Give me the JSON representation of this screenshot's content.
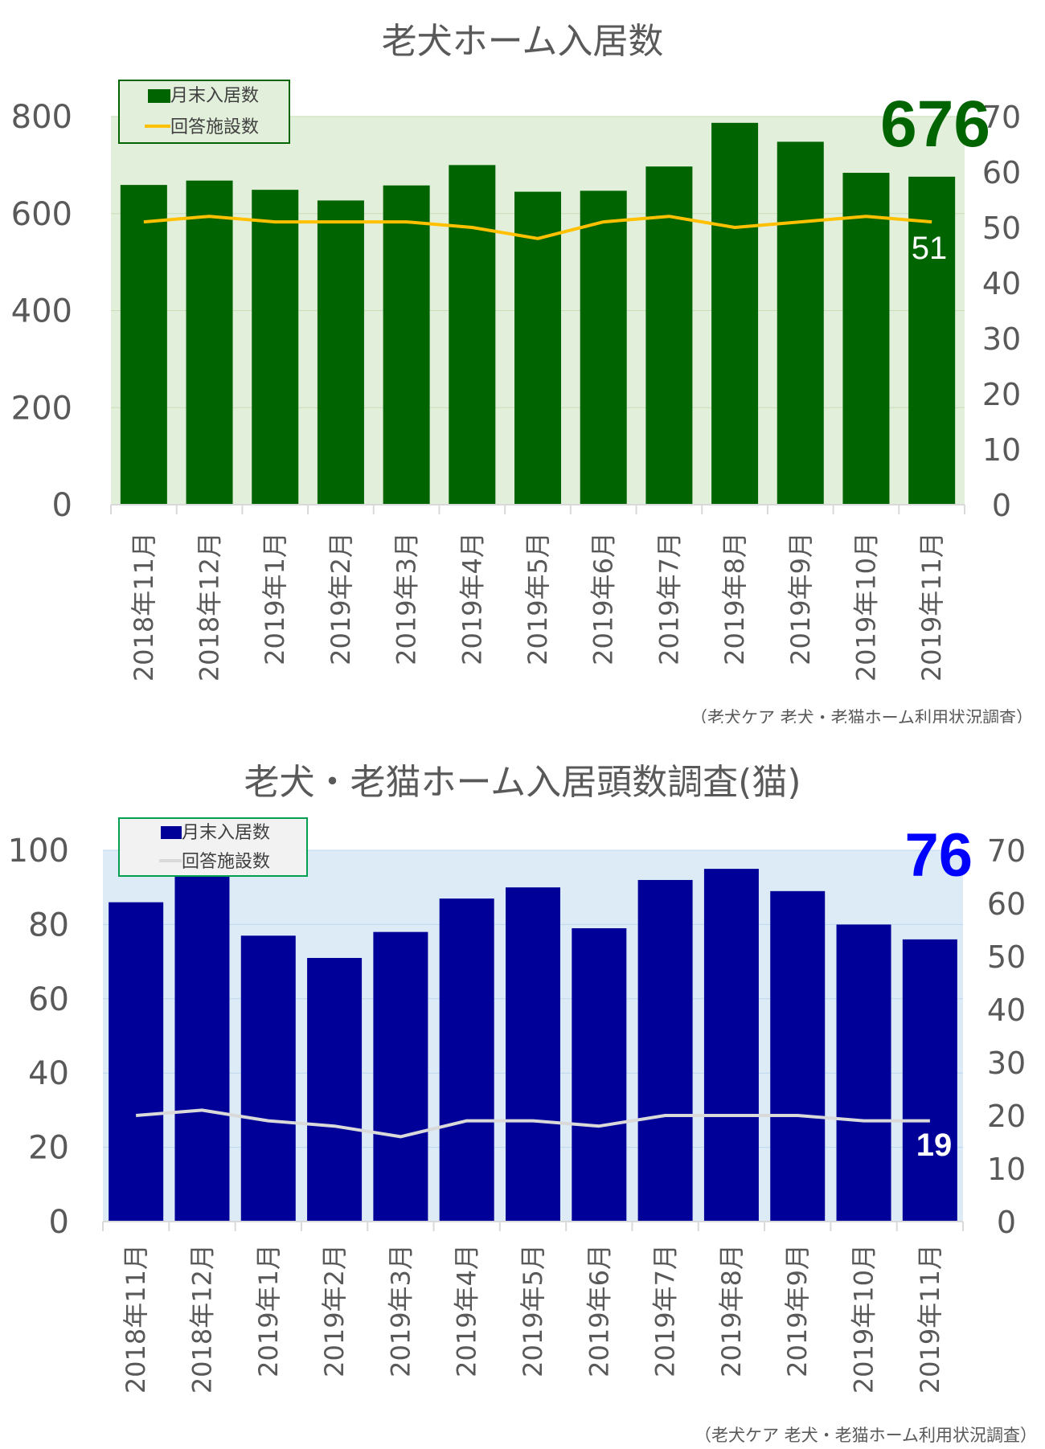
{
  "chart_data": [
    {
      "type": "bar",
      "title": "老犬ホーム入居数",
      "categories": [
        "2018年11月",
        "2018年12月",
        "2019年1月",
        "2019年2月",
        "2019年3月",
        "2019年4月",
        "2019年5月",
        "2019年6月",
        "2019年7月",
        "2019年8月",
        "2019年9月",
        "2019年10月",
        "2019年11月"
      ],
      "series": [
        {
          "name": "月末入居数",
          "type": "bar",
          "axis": "left",
          "color": "#006400",
          "values": [
            659,
            668,
            649,
            627,
            658,
            700,
            645,
            647,
            697,
            787,
            748,
            684,
            676
          ]
        },
        {
          "name": "回答施設数",
          "type": "line",
          "axis": "right",
          "color": "#FFC000",
          "values": [
            51,
            52,
            51,
            51,
            51,
            50,
            48,
            51,
            52,
            50,
            51,
            52,
            51
          ]
        }
      ],
      "ylim": [
        0,
        800
      ],
      "y2lim": [
        0,
        70
      ],
      "yticks": [
        "0",
        "200",
        "400",
        "600",
        "800"
      ],
      "y2ticks": [
        "0",
        "10",
        "20",
        "30",
        "40",
        "50",
        "60",
        "70"
      ],
      "big_label": "676",
      "big_label_color": "#006400",
      "end_label": "51",
      "plot_bg": "#E2EFDA",
      "source": "（老犬ケア 老犬・老猫ホーム利用状況調査）",
      "legend_placement": "top-left"
    },
    {
      "type": "bar",
      "title": "老犬・老猫ホーム入居頭数調査(猫)",
      "categories": [
        "2018年11月",
        "2018年12月",
        "2019年1月",
        "2019年2月",
        "2019年3月",
        "2019年4月",
        "2019年5月",
        "2019年6月",
        "2019年7月",
        "2019年8月",
        "2019年9月",
        "2019年10月",
        "2019年11月"
      ],
      "series": [
        {
          "name": "月末入居数",
          "type": "bar",
          "axis": "left",
          "color": "#000099",
          "values": [
            86,
            94,
            77,
            71,
            78,
            87,
            90,
            79,
            92,
            95,
            89,
            80,
            76
          ]
        },
        {
          "name": "回答施設数",
          "type": "line",
          "axis": "right",
          "color": "#D9D9D9",
          "values": [
            20,
            21,
            19,
            18,
            16,
            19,
            19,
            18,
            20,
            20,
            20,
            19,
            19
          ]
        }
      ],
      "ylim": [
        0,
        100
      ],
      "y2lim": [
        0,
        70
      ],
      "yticks": [
        "0",
        "20",
        "40",
        "60",
        "80",
        "100"
      ],
      "y2ticks": [
        "0",
        "10",
        "20",
        "30",
        "40",
        "50",
        "60",
        "70"
      ],
      "big_label": "76",
      "big_label_color": "#0000FF",
      "end_label": "19",
      "plot_bg": "#DDEBF7",
      "source": "（老犬ケア 老犬・老猫ホーム利用状況調査）",
      "legend_placement": "top-left"
    }
  ]
}
